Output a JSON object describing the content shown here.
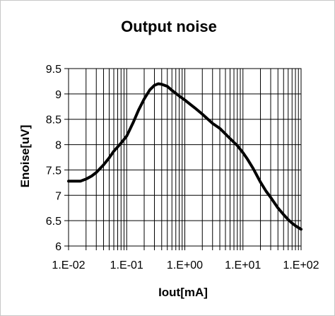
{
  "chart_data": {
    "type": "line",
    "title": "Output noise",
    "xlabel": "Iout[mA]",
    "ylabel": "Enoise[uV]",
    "xscale": "log",
    "xlim": [
      0.01,
      100
    ],
    "ylim": [
      6,
      9.5
    ],
    "grid": true,
    "legend": "none",
    "x_tick_values": [
      0.01,
      0.1,
      1,
      10,
      100
    ],
    "x_tick_labels": [
      "1.E-02",
      "1.E-01",
      "1.E+00",
      "1.E+01",
      "1.E+02"
    ],
    "y_ticks": [
      6,
      6.5,
      7,
      7.5,
      8,
      8.5,
      9,
      9.5
    ],
    "y_tick_labels": [
      "6",
      "6.5",
      "7",
      "7.5",
      "8",
      "8.5",
      "9",
      "9.5"
    ],
    "series": [
      {
        "color": "#000000",
        "x": [
          0.01,
          0.016,
          0.02,
          0.025,
          0.03,
          0.04,
          0.05,
          0.06,
          0.08,
          0.1,
          0.13,
          0.16,
          0.2,
          0.25,
          0.3,
          0.35,
          0.4,
          0.5,
          0.6,
          0.8,
          1,
          1.5,
          2,
          3,
          4,
          5,
          6,
          8,
          10,
          12,
          15,
          20,
          25,
          30,
          40,
          50,
          60,
          70,
          80,
          100
        ],
        "y": [
          7.28,
          7.28,
          7.32,
          7.38,
          7.45,
          7.6,
          7.74,
          7.87,
          8.03,
          8.17,
          8.44,
          8.68,
          8.9,
          9.08,
          9.17,
          9.2,
          9.19,
          9.15,
          9.07,
          8.96,
          8.88,
          8.72,
          8.6,
          8.42,
          8.32,
          8.21,
          8.12,
          7.98,
          7.84,
          7.71,
          7.53,
          7.26,
          7.08,
          6.96,
          6.75,
          6.62,
          6.52,
          6.45,
          6.4,
          6.33
        ]
      }
    ]
  }
}
